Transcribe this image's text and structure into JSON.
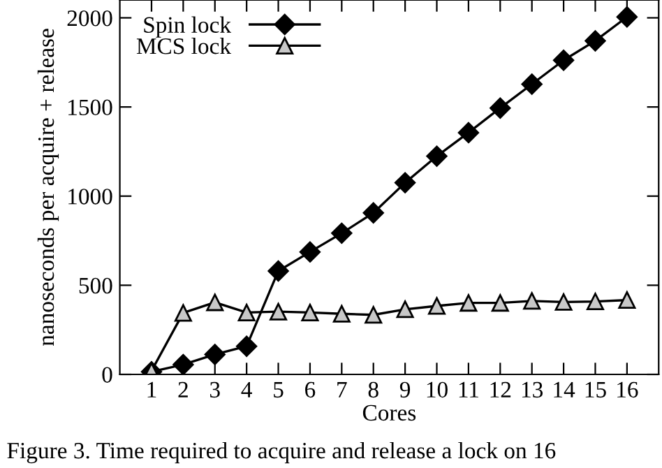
{
  "chart_data": {
    "type": "line",
    "xlabel": "Cores",
    "ylabel": "nanoseconds per acquire + release",
    "x": [
      1,
      2,
      3,
      4,
      5,
      6,
      7,
      8,
      9,
      10,
      11,
      12,
      13,
      14,
      15,
      16
    ],
    "series": [
      {
        "name": "Spin lock",
        "color": "#000000",
        "marker": "diamond",
        "values": [
          15,
          55,
          112,
          158,
          580,
          687,
          792,
          906,
          1075,
          1224,
          1356,
          1494,
          1628,
          1762,
          1871,
          2005
        ]
      },
      {
        "name": "MCS lock",
        "color": "#000000",
        "marker": "triangle",
        "values": [
          20,
          345,
          404,
          347,
          352,
          347,
          340,
          334,
          365,
          384,
          401,
          401,
          412,
          406,
          409,
          417
        ]
      }
    ],
    "xlim": [
      0,
      17
    ],
    "xticks": [
      1,
      2,
      3,
      4,
      5,
      6,
      7,
      8,
      9,
      10,
      11,
      12,
      13,
      14,
      15,
      16
    ],
    "ylim": [
      0,
      2100
    ],
    "yticks": [
      0,
      500,
      1000,
      1500,
      2000
    ],
    "grid": false,
    "legend": "top left",
    "line_style": "solid",
    "annotations": [
      "Figure 3. Time required to acquire and release a lock on 16"
    ]
  }
}
